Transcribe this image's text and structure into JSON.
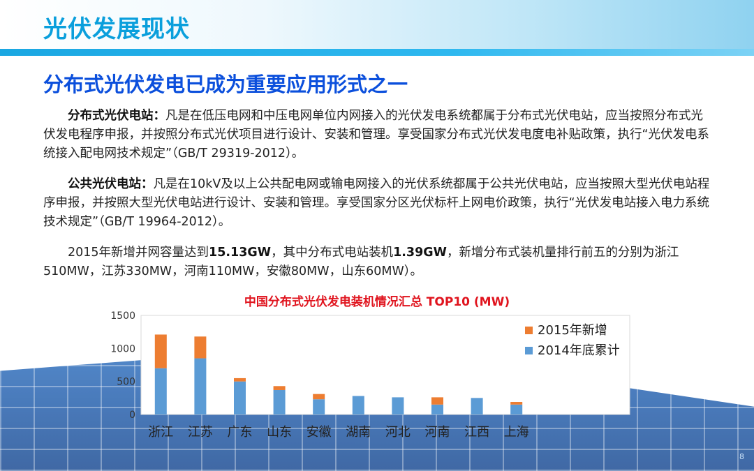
{
  "header": {
    "title": "光伏发展现状"
  },
  "subtitle": "分布式光伏发电已成为重要应用形式之一",
  "paragraphs": {
    "p1_bold": "分布式光伏电站：",
    "p1_text": "凡是在低压电网和中压电网单位内网接入的光伏发电系统都属于分布式光伏电站，应当按照分布式光伏发电程序申报，并按照分布式光伏项目进行设计、安装和管理。享受国家分布式光伏发电度电补贴政策，执行“光伏发电系统接入配电网技术规定”（GB/T 29319-2012）。",
    "p2_bold": "公共光伏电站：",
    "p2_text": "凡是在10kV及以上公共配电网或输电网接入的光伏系统都属于公共光伏电站，应当按照大型光伏电站程序申报，并按照大型光伏电站进行设计、安装和管理。享受国家分区光伏标杆上网电价政策，执行“光伏发电站接入电力系统技术规定”（GB/T 19964-2012）。",
    "p3_a": "2015年新增并网容量达到",
    "p3_b": "15.13GW",
    "p3_c": "，其中分布式电站装机",
    "p3_d": "1.39GW",
    "p3_e": "，新增分布式装机量排行前五的分别为浙江510MW，江苏330MW，河南110MW，安徽80MW，山东60MW）。"
  },
  "page_number": "8",
  "colors": {
    "base": "#5b9bd5",
    "new": "#ed7d31",
    "title_red": "#e0141e"
  },
  "chart_data": {
    "type": "bar",
    "stacked": true,
    "title": "中国分布式光伏发电装机情况汇总 TOP10 (MW)",
    "categories": [
      "浙江",
      "江苏",
      "广东",
      "山东",
      "安徽",
      "湖南",
      "河北",
      "河南",
      "江西",
      "上海"
    ],
    "series": [
      {
        "name": "2014年底累计",
        "color": "#5b9bd5",
        "values": [
          700,
          850,
          500,
          370,
          230,
          280,
          260,
          150,
          250,
          150
        ]
      },
      {
        "name": "2015年新增",
        "color": "#ed7d31",
        "values": [
          510,
          330,
          50,
          60,
          80,
          0,
          0,
          110,
          0,
          40
        ]
      }
    ],
    "ylim": [
      0,
      1500
    ],
    "yticks": [
      0,
      500,
      1000,
      1500
    ],
    "legend": "right"
  }
}
